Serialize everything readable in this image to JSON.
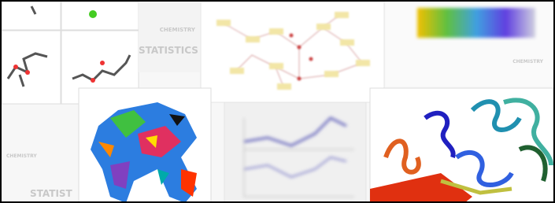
{
  "labels": {
    "chem_top": "CHEMISTRY",
    "stat_top": "STATISTICS",
    "chem_right": "CHEMISTRY",
    "chem_left": "CHEMISTRY",
    "stat_bottom": "STATIST"
  }
}
